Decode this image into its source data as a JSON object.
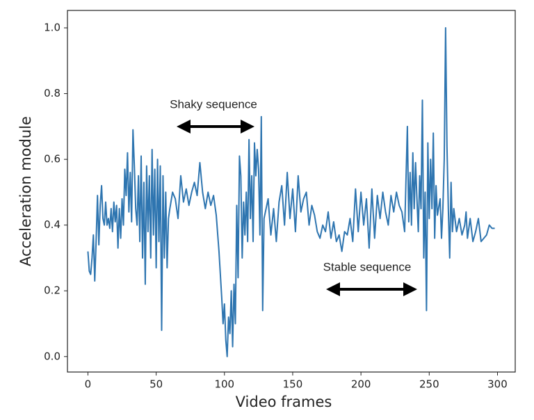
{
  "chart_data": {
    "type": "line",
    "x_label": "Video frames",
    "y_label": "Acceleration module",
    "annotations": [
      "Shaky sequence",
      "Stable sequence"
    ],
    "xlim": [
      -15,
      313
    ],
    "ylim": [
      -0.047,
      1.053
    ],
    "xticks": [
      0,
      50,
      100,
      150,
      200,
      250,
      300
    ],
    "yticks": [
      {
        "value": 0,
        "label": "0.0"
      },
      0.2,
      0.4,
      0.6,
      0.8,
      {
        "value": 1,
        "label": "1.0"
      }
    ],
    "x": [
      0,
      1,
      2,
      3,
      4,
      5,
      6,
      7,
      8,
      9,
      10,
      11,
      12,
      13,
      14,
      15,
      16,
      17,
      18,
      19,
      20,
      21,
      22,
      23,
      24,
      25,
      26,
      27,
      28,
      29,
      30,
      31,
      32,
      33,
      34,
      35,
      36,
      37,
      38,
      39,
      40,
      41,
      42,
      43,
      44,
      45,
      46,
      47,
      48,
      49,
      50,
      51,
      52,
      53,
      54,
      55,
      56,
      57,
      58,
      59,
      60,
      62,
      64,
      66,
      68,
      70,
      72,
      74,
      76,
      78,
      80,
      82,
      84,
      86,
      88,
      90,
      92,
      94,
      96,
      98,
      99,
      100,
      101,
      102,
      103,
      104,
      105,
      106,
      107,
      108,
      109,
      110,
      111,
      112,
      113,
      114,
      115,
      116,
      117,
      118,
      119,
      120,
      121,
      122,
      123,
      124,
      125,
      126,
      127,
      128,
      129,
      131,
      132,
      134,
      136,
      138,
      140,
      142,
      144,
      146,
      148,
      150,
      152,
      154,
      156,
      158,
      160,
      162,
      164,
      166,
      168,
      170,
      172,
      174,
      176,
      178,
      180,
      182,
      184,
      186,
      188,
      190,
      192,
      194,
      196,
      198,
      200,
      202,
      204,
      206,
      208,
      210,
      212,
      214,
      216,
      218,
      220,
      222,
      224,
      226,
      228,
      230,
      232,
      234,
      235,
      236,
      237,
      238,
      239,
      240,
      241,
      242,
      243,
      244,
      245,
      246,
      247,
      248,
      249,
      250,
      251,
      252,
      253,
      254,
      255,
      256,
      258,
      259,
      260,
      261,
      262,
      263,
      264,
      265,
      266,
      267,
      268,
      270,
      272,
      274,
      276,
      277,
      278,
      280,
      282,
      284,
      286,
      288,
      290,
      292,
      294,
      296,
      298
    ],
    "series": [
      {
        "name": "Acceleration module",
        "color": "#2e75b0",
        "values": [
          0.32,
          0.26,
          0.25,
          0.3,
          0.37,
          0.23,
          0.35,
          0.49,
          0.34,
          0.46,
          0.52,
          0.42,
          0.4,
          0.47,
          0.4,
          0.42,
          0.39,
          0.45,
          0.38,
          0.47,
          0.41,
          0.46,
          0.33,
          0.45,
          0.36,
          0.48,
          0.4,
          0.57,
          0.49,
          0.62,
          0.44,
          0.56,
          0.41,
          0.69,
          0.58,
          0.45,
          0.4,
          0.55,
          0.35,
          0.61,
          0.3,
          0.53,
          0.22,
          0.58,
          0.38,
          0.55,
          0.3,
          0.63,
          0.37,
          0.57,
          0.27,
          0.6,
          0.35,
          0.58,
          0.08,
          0.55,
          0.3,
          0.5,
          0.27,
          0.42,
          0.45,
          0.5,
          0.48,
          0.42,
          0.55,
          0.47,
          0.51,
          0.46,
          0.5,
          0.53,
          0.49,
          0.59,
          0.5,
          0.45,
          0.5,
          0.46,
          0.49,
          0.43,
          0.32,
          0.18,
          0.1,
          0.16,
          0.05,
          0.0,
          0.12,
          0.07,
          0.2,
          0.03,
          0.22,
          0.1,
          0.46,
          0.24,
          0.61,
          0.55,
          0.3,
          0.47,
          0.37,
          0.5,
          0.35,
          0.66,
          0.42,
          0.55,
          0.35,
          0.65,
          0.55,
          0.63,
          0.57,
          0.37,
          0.73,
          0.14,
          0.42,
          0.46,
          0.48,
          0.37,
          0.45,
          0.35,
          0.47,
          0.52,
          0.4,
          0.56,
          0.42,
          0.51,
          0.38,
          0.55,
          0.44,
          0.48,
          0.5,
          0.4,
          0.46,
          0.43,
          0.38,
          0.36,
          0.4,
          0.38,
          0.44,
          0.36,
          0.41,
          0.35,
          0.37,
          0.32,
          0.38,
          0.37,
          0.42,
          0.35,
          0.51,
          0.38,
          0.5,
          0.4,
          0.48,
          0.33,
          0.51,
          0.36,
          0.49,
          0.42,
          0.5,
          0.44,
          0.4,
          0.49,
          0.44,
          0.5,
          0.46,
          0.44,
          0.38,
          0.7,
          0.41,
          0.56,
          0.4,
          0.62,
          0.45,
          0.59,
          0.48,
          0.38,
          0.55,
          0.45,
          0.78,
          0.3,
          0.5,
          0.14,
          0.65,
          0.42,
          0.6,
          0.45,
          0.68,
          0.36,
          0.52,
          0.43,
          0.48,
          0.36,
          0.45,
          0.6,
          1.0,
          0.64,
          0.45,
          0.3,
          0.53,
          0.38,
          0.45,
          0.38,
          0.42,
          0.37,
          0.4,
          0.44,
          0.36,
          0.42,
          0.35,
          0.38,
          0.42,
          0.35,
          0.36,
          0.37,
          0.4,
          0.39,
          0.39
        ]
      }
    ]
  }
}
